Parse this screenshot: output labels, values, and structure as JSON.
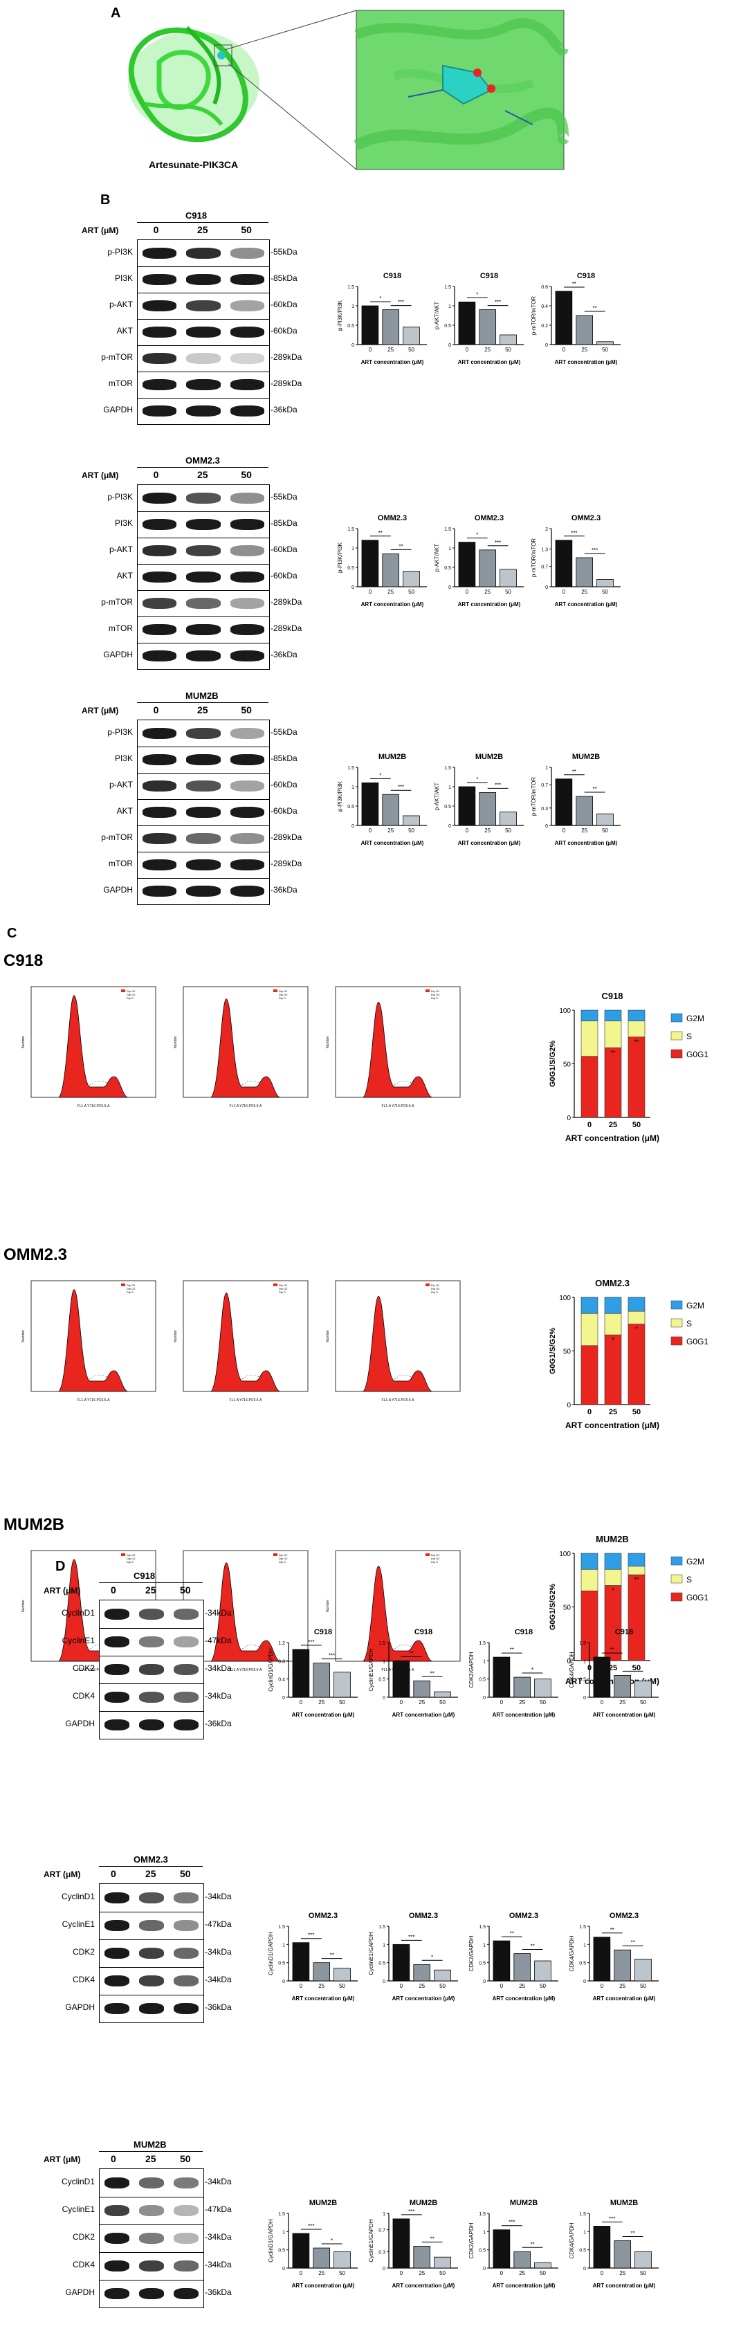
{
  "panel_letters": {
    "A": "A",
    "B": "B",
    "C": "C",
    "D": "D"
  },
  "panelA": {
    "caption": "Artesunate-PIK3CA"
  },
  "western_B": [
    {
      "cell": "C918",
      "art_label": "ART (μM)",
      "doses": [
        "0",
        "25",
        "50"
      ],
      "proteins": [
        "p-PI3K",
        "PI3K",
        "p-AKT",
        "AKT",
        "p-mTOR",
        "mTOR",
        "GAPDH"
      ],
      "kda": [
        "-55kDa",
        "-85kDa",
        "-60kDa",
        "-60kDa",
        "-289kDa",
        "-289kDa",
        "-36kDa"
      ]
    },
    {
      "cell": "OMM2.3",
      "art_label": "ART (μM)",
      "doses": [
        "0",
        "25",
        "50"
      ],
      "proteins": [
        "p-PI3K",
        "PI3K",
        "p-AKT",
        "AKT",
        "p-mTOR",
        "mTOR",
        "GAPDH"
      ],
      "kda": [
        "-55kDa",
        "-85kDa",
        "-60kDa",
        "-60kDa",
        "-289kDa",
        "-289kDa",
        "-36kDa"
      ]
    },
    {
      "cell": "MUM2B",
      "art_label": "ART (μM)",
      "doses": [
        "0",
        "25",
        "50"
      ],
      "proteins": [
        "p-PI3K",
        "PI3K",
        "p-AKT",
        "AKT",
        "p-mTOR",
        "mTOR",
        "GAPDH"
      ],
      "kda": [
        "-55kDa",
        "-85kDa",
        "-60kDa",
        "-60kDa",
        "-289kDa",
        "-289kDa",
        "-36kDa"
      ]
    }
  ],
  "western_D": [
    {
      "cell": "C918",
      "art_label": "ART (μM)",
      "doses": [
        "0",
        "25",
        "50"
      ],
      "proteins": [
        "CyclinD1",
        "CyclinE1",
        "CDK2",
        "CDK4",
        "GAPDH"
      ],
      "kda": [
        "-34kDa",
        "-47kDa",
        "-34kDa",
        "-34kDa",
        "-36kDa"
      ]
    },
    {
      "cell": "OMM2.3",
      "art_label": "ART (μM)",
      "doses": [
        "0",
        "25",
        "50"
      ],
      "proteins": [
        "CyclinD1",
        "CyclinE1",
        "CDK2",
        "CDK4",
        "GAPDH"
      ],
      "kda": [
        "-34kDa",
        "-47kDa",
        "-34kDa",
        "-34kDa",
        "-36kDa"
      ]
    },
    {
      "cell": "MUM2B",
      "art_label": "ART (μM)",
      "doses": [
        "0",
        "25",
        "50"
      ],
      "proteins": [
        "CyclinD1",
        "CyclinE1",
        "CDK2",
        "CDK4",
        "GAPDH"
      ],
      "kda": [
        "-34kDa",
        "-47kDa",
        "-34kDa",
        "-34kDa",
        "-36kDa"
      ]
    }
  ],
  "flow_C": {
    "rows": [
      {
        "cell": "C918"
      },
      {
        "cell": "OMM2.3"
      },
      {
        "cell": "MUM2B"
      }
    ],
    "axis_x": "FL1-A Y716-PC5.5-A",
    "axis_y": "Number",
    "legend": [
      "Dip G1",
      "Dip G2",
      "Dip S"
    ]
  },
  "chart_data": [
    {
      "type": "bar",
      "title": "C918",
      "ylabel": "p-PI3K/PI3K",
      "xlabel": "ART concentration (μM)",
      "categories": [
        "0",
        "25",
        "50"
      ],
      "values": [
        1.0,
        0.9,
        0.45
      ],
      "ylim": [
        0,
        1.5
      ],
      "sig": [
        "*",
        "***"
      ]
    },
    {
      "type": "bar",
      "title": "C918",
      "ylabel": "p-AKT/AKT",
      "xlabel": "ART concentration (μM)",
      "categories": [
        "0",
        "25",
        "50"
      ],
      "values": [
        1.1,
        0.9,
        0.25
      ],
      "ylim": [
        0,
        1.5
      ],
      "sig": [
        "*",
        "***"
      ]
    },
    {
      "type": "bar",
      "title": "C918",
      "ylabel": "p-mTOR/mTOR",
      "xlabel": "ART concentration (μM)",
      "categories": [
        "0",
        "25",
        "50"
      ],
      "values": [
        0.55,
        0.3,
        0.03
      ],
      "ylim": [
        0,
        0.6
      ],
      "sig": [
        "**",
        "**"
      ]
    },
    {
      "type": "bar",
      "title": "OMM2.3",
      "ylabel": "p-PI3K/PI3K",
      "xlabel": "ART concentration (μM)",
      "categories": [
        "0",
        "25",
        "50"
      ],
      "values": [
        1.2,
        0.85,
        0.4
      ],
      "ylim": [
        0,
        1.5
      ],
      "sig": [
        "**",
        "**"
      ]
    },
    {
      "type": "bar",
      "title": "OMM2.3",
      "ylabel": "p-AKT/AKT",
      "xlabel": "ART concentration (μM)",
      "categories": [
        "0",
        "25",
        "50"
      ],
      "values": [
        1.15,
        0.95,
        0.45
      ],
      "ylim": [
        0,
        1.5
      ],
      "sig": [
        "*",
        "***"
      ]
    },
    {
      "type": "bar",
      "title": "OMM2.3",
      "ylabel": "p-mTOR/mTOR",
      "xlabel": "ART concentration (μM)",
      "categories": [
        "0",
        "25",
        "50"
      ],
      "values": [
        1.6,
        1.0,
        0.25
      ],
      "ylim": [
        0,
        2.0
      ],
      "sig": [
        "***",
        "***"
      ]
    },
    {
      "type": "bar",
      "title": "MUM2B",
      "ylabel": "p-PI3K/PI3K",
      "xlabel": "ART concentration (μM)",
      "categories": [
        "0",
        "25",
        "50"
      ],
      "values": [
        1.1,
        0.8,
        0.25
      ],
      "ylim": [
        0,
        1.5
      ],
      "sig": [
        "*",
        "***"
      ]
    },
    {
      "type": "bar",
      "title": "MUM2B",
      "ylabel": "p-AKT/AKT",
      "xlabel": "ART concentration (μM)",
      "categories": [
        "0",
        "25",
        "50"
      ],
      "values": [
        1.0,
        0.85,
        0.35
      ],
      "ylim": [
        0,
        1.5
      ],
      "sig": [
        "*",
        "***"
      ]
    },
    {
      "type": "bar",
      "title": "MUM2B",
      "ylabel": "p-mTOR/mTOR",
      "xlabel": "ART concentration (μM)",
      "categories": [
        "0",
        "25",
        "50"
      ],
      "values": [
        0.8,
        0.5,
        0.2
      ],
      "ylim": [
        0,
        1.0
      ],
      "sig": [
        "**",
        "**"
      ]
    },
    {
      "type": "stacked_bar",
      "title": "C918",
      "ylabel": "G0G1/S/G2%",
      "xlabel": "ART concentration (μM)",
      "categories": [
        "0",
        "25",
        "50"
      ],
      "series": [
        {
          "name": "G0G1",
          "values": [
            57,
            65,
            75
          ]
        },
        {
          "name": "S",
          "values": [
            33,
            25,
            15
          ]
        },
        {
          "name": "G2M",
          "values": [
            10,
            10,
            10
          ]
        }
      ],
      "ylim": [
        0,
        100
      ],
      "sig": [
        "**",
        "**"
      ]
    },
    {
      "type": "stacked_bar",
      "title": "OMM2.3",
      "ylabel": "G0G1/S/G2%",
      "xlabel": "ART concentration (μM)",
      "categories": [
        "0",
        "25",
        "50"
      ],
      "series": [
        {
          "name": "G0G1",
          "values": [
            55,
            65,
            75
          ]
        },
        {
          "name": "S",
          "values": [
            30,
            20,
            12
          ]
        },
        {
          "name": "G2M",
          "values": [
            15,
            15,
            13
          ]
        }
      ],
      "ylim": [
        0,
        100
      ],
      "sig": [
        "*",
        "*"
      ]
    },
    {
      "type": "stacked_bar",
      "title": "MUM2B",
      "ylabel": "G0G1/S/G2%",
      "xlabel": "ART concentration (μM)",
      "categories": [
        "0",
        "25",
        "50"
      ],
      "series": [
        {
          "name": "G0G1",
          "values": [
            65,
            70,
            80
          ]
        },
        {
          "name": "S",
          "values": [
            20,
            15,
            8
          ]
        },
        {
          "name": "G2M",
          "values": [
            15,
            15,
            12
          ]
        }
      ],
      "ylim": [
        0,
        100
      ],
      "sig": [
        "*",
        "**"
      ]
    },
    {
      "type": "bar",
      "title": "C918",
      "ylabel": "CyclinD1/GAPDH",
      "xlabel": "ART concentration (μM)",
      "categories": [
        "0",
        "25",
        "50"
      ],
      "values": [
        1.05,
        0.75,
        0.55
      ],
      "ylim": [
        0,
        1.2
      ],
      "sig": [
        "***",
        "***"
      ]
    },
    {
      "type": "bar",
      "title": "C918",
      "ylabel": "CyclinE1/GAPDH",
      "xlabel": "ART concentration (μM)",
      "categories": [
        "0",
        "25",
        "50"
      ],
      "values": [
        1.0,
        0.45,
        0.15
      ],
      "ylim": [
        0,
        1.5
      ],
      "sig": [
        "**",
        "**"
      ]
    },
    {
      "type": "bar",
      "title": "C918",
      "ylabel": "CDK2/GAPDH",
      "xlabel": "ART concentration (μM)",
      "categories": [
        "0",
        "25",
        "50"
      ],
      "values": [
        1.1,
        0.55,
        0.5
      ],
      "ylim": [
        0,
        1.5
      ],
      "sig": [
        "**",
        "*"
      ]
    },
    {
      "type": "bar",
      "title": "C918",
      "ylabel": "CDK4/GAPDH",
      "xlabel": "ART concentration (μM)",
      "categories": [
        "0",
        "25",
        "50"
      ],
      "values": [
        1.1,
        0.6,
        0.45
      ],
      "ylim": [
        0,
        1.5
      ],
      "sig": [
        "**",
        "*"
      ]
    },
    {
      "type": "bar",
      "title": "OMM2.3",
      "ylabel": "CyclinD1/GAPDH",
      "xlabel": "ART concentration (μM)",
      "categories": [
        "0",
        "25",
        "50"
      ],
      "values": [
        1.05,
        0.5,
        0.35
      ],
      "ylim": [
        0,
        1.5
      ],
      "sig": [
        "***",
        "**"
      ]
    },
    {
      "type": "bar",
      "title": "OMM2.3",
      "ylabel": "CyclinE1/GAPDH",
      "xlabel": "ART concentration (μM)",
      "categories": [
        "0",
        "25",
        "50"
      ],
      "values": [
        1.0,
        0.45,
        0.3
      ],
      "ylim": [
        0,
        1.5
      ],
      "sig": [
        "***",
        "*"
      ]
    },
    {
      "type": "bar",
      "title": "OMM2.3",
      "ylabel": "CDK2/GAPDH",
      "xlabel": "ART concentration (μM)",
      "categories": [
        "0",
        "25",
        "50"
      ],
      "values": [
        1.1,
        0.75,
        0.55
      ],
      "ylim": [
        0,
        1.5
      ],
      "sig": [
        "**",
        "**"
      ]
    },
    {
      "type": "bar",
      "title": "OMM2.3",
      "ylabel": "CDK4/GAPDH",
      "xlabel": "ART concentration (μM)",
      "categories": [
        "0",
        "25",
        "50"
      ],
      "values": [
        1.2,
        0.85,
        0.6
      ],
      "ylim": [
        0,
        1.5
      ],
      "sig": [
        "**",
        "**"
      ]
    },
    {
      "type": "bar",
      "title": "MUM2B",
      "ylabel": "CyclinD1/GAPDH",
      "xlabel": "ART concentration (μM)",
      "categories": [
        "0",
        "25",
        "50"
      ],
      "values": [
        0.95,
        0.55,
        0.45
      ],
      "ylim": [
        0,
        1.5
      ],
      "sig": [
        "***",
        "*"
      ]
    },
    {
      "type": "bar",
      "title": "MUM2B",
      "ylabel": "CyclinE1/GAPDH",
      "xlabel": "ART concentration (μM)",
      "categories": [
        "0",
        "25",
        "50"
      ],
      "values": [
        0.9,
        0.4,
        0.2
      ],
      "ylim": [
        0,
        1.0
      ],
      "sig": [
        "***",
        "**"
      ]
    },
    {
      "type": "bar",
      "title": "MUM2B",
      "ylabel": "CDK2/GAPDH",
      "xlabel": "ART concentration (μM)",
      "categories": [
        "0",
        "25",
        "50"
      ],
      "values": [
        1.05,
        0.45,
        0.15
      ],
      "ylim": [
        0,
        1.5
      ],
      "sig": [
        "***",
        "**"
      ]
    },
    {
      "type": "bar",
      "title": "MUM2B",
      "ylabel": "CDK4/GAPDH",
      "xlabel": "ART concentration (μM)",
      "categories": [
        "0",
        "25",
        "50"
      ],
      "values": [
        1.15,
        0.75,
        0.45
      ],
      "ylim": [
        0,
        1.5
      ],
      "sig": [
        "***",
        "**"
      ]
    }
  ],
  "colors": {
    "bar_black": "#111111",
    "bar_grey1": "#8c969e",
    "bar_grey2": "#bcc5cc",
    "g2m": "#2e9fe6",
    "s": "#f3f58e",
    "g0g1": "#e8251f",
    "protein_green": "#3fd93f"
  }
}
